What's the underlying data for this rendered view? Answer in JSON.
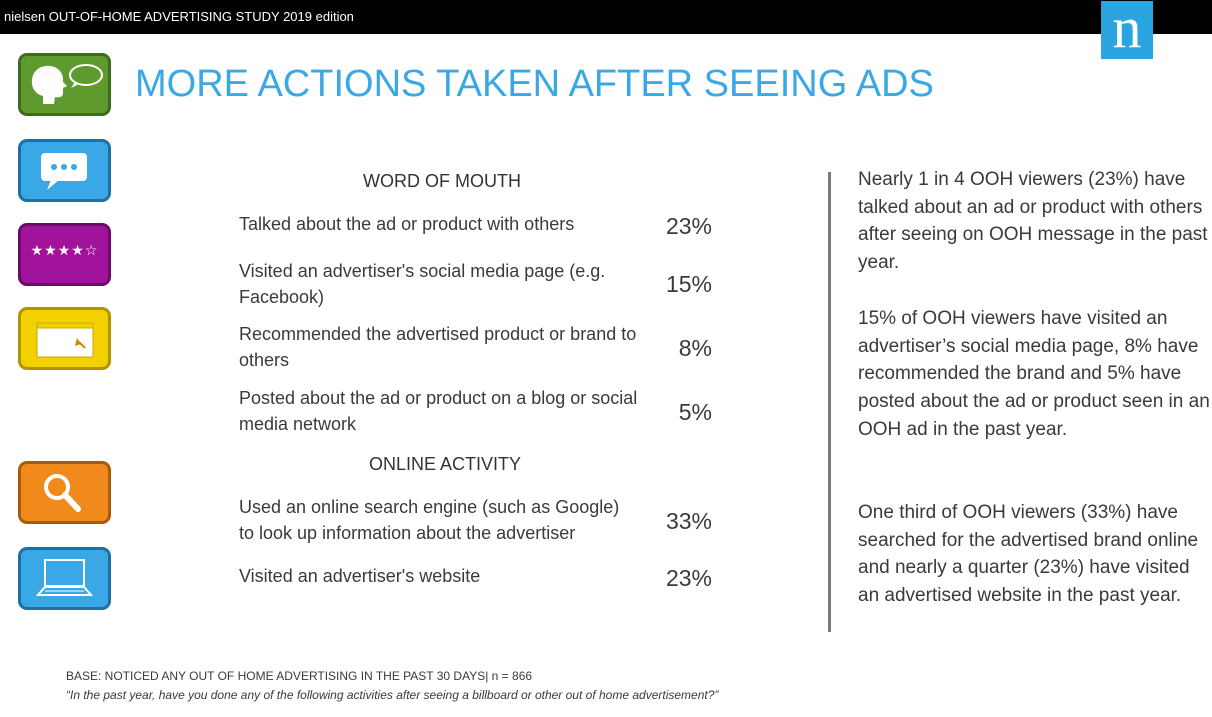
{
  "header": {
    "study_title": "nielsen OUT-OF-HOME ADVERTISING STUDY 2019 edition",
    "logo_letter": "n",
    "logo_color": "#2aa5e0"
  },
  "page_title": "MORE ACTIONS TAKEN AFTER SEEING ADS",
  "side_icons": [
    {
      "name": "speech-head-icon",
      "color": "#5e9a2e"
    },
    {
      "name": "chat-bubble-icon",
      "color": "#3aa8e6"
    },
    {
      "name": "rating-stars-icon",
      "color": "#a2139b",
      "stars": "★★★★☆"
    },
    {
      "name": "browser-window-icon",
      "color": "#f3d000"
    },
    {
      "name": "magnifier-icon",
      "color": "#f08a1c"
    },
    {
      "name": "laptop-icon",
      "color": "#3aa8e6"
    }
  ],
  "sections": [
    {
      "heading": "WORD OF MOUTH",
      "items": [
        {
          "label": "Talked about the ad or product with others",
          "value": "23%"
        },
        {
          "label": "Visited an advertiser's social media page (e.g. Facebook)",
          "value": "15%"
        },
        {
          "label": "Recommended the advertised product or brand to others",
          "value": "8%"
        },
        {
          "label": "Posted about the ad or product on a blog or social media network",
          "value": "5%"
        }
      ]
    },
    {
      "heading": "ONLINE ACTIVITY",
      "items": [
        {
          "label": "Used an online search engine (such as Google) to look up information about the advertiser",
          "value": "33%"
        },
        {
          "label": "Visited an advertiser's website",
          "value": "23%"
        }
      ]
    }
  ],
  "commentary": [
    "Nearly 1 in 4 OOH viewers (23%) have talked about an ad or product with others after seeing on OOH message in the past year.",
    "15% of OOH viewers have visited an advertiser’s social media page, 8% have recommended the brand and 5% have posted about the ad or product seen in an OOH ad in the past year.",
    "One third of OOH viewers (33%) have searched for the advertised brand online and nearly a quarter (23%) have visited an advertised website in the past year."
  ],
  "footer": {
    "base": "BASE: NOTICED ANY OUT OF HOME ADVERTISING IN THE PAST 30 DAYS| n = 866",
    "question": "“In the past year, have you done any of the following activities after seeing a billboard or other out of home advertisement?”"
  }
}
